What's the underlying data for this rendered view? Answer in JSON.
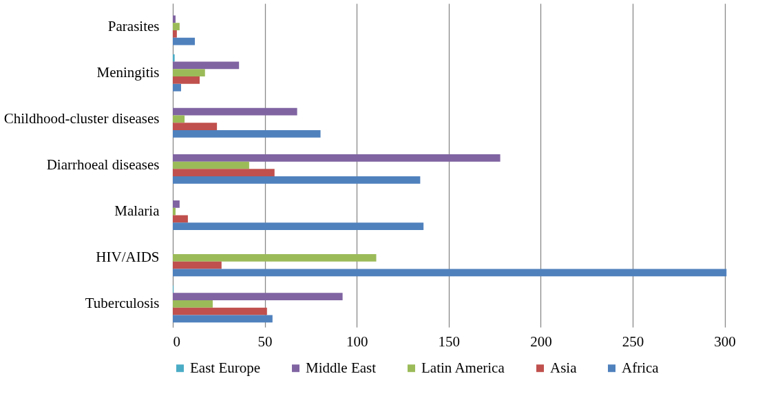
{
  "chart_data": {
    "type": "bar",
    "orientation": "horizontal",
    "categories": [
      "Parasites",
      "Meningitis",
      "Childhood-cluster diseases",
      "Diarrhoeal diseases",
      "Malaria",
      "HIV/AIDS",
      "Tuberculosis"
    ],
    "series": [
      {
        "name": "East Europe",
        "color": "#4bacc6",
        "values": [
          0,
          1,
          0,
          0,
          0,
          0,
          0.4
        ]
      },
      {
        "name": "Middle East",
        "color": "#8064a2",
        "values": [
          1.5,
          36,
          67.6,
          178,
          3.7,
          0,
          92.3
        ]
      },
      {
        "name": "Latin America",
        "color": "#9bbb59",
        "values": [
          3.7,
          17.5,
          6.4,
          41.5,
          1.5,
          110.6,
          21.7
        ]
      },
      {
        "name": "Asia",
        "color": "#c0504d",
        "values": [
          2.2,
          14.6,
          24,
          55.3,
          8.2,
          26.5,
          51.2
        ]
      },
      {
        "name": "Africa",
        "color": "#4f81bd",
        "values": [
          12,
          4.5,
          80.3,
          134.5,
          136.3,
          301,
          54.2
        ]
      }
    ],
    "xlim": [
      0,
      320
    ],
    "xticks": [
      0,
      50,
      100,
      150,
      200,
      250,
      300
    ],
    "grid": "x",
    "legend": "bottom"
  }
}
